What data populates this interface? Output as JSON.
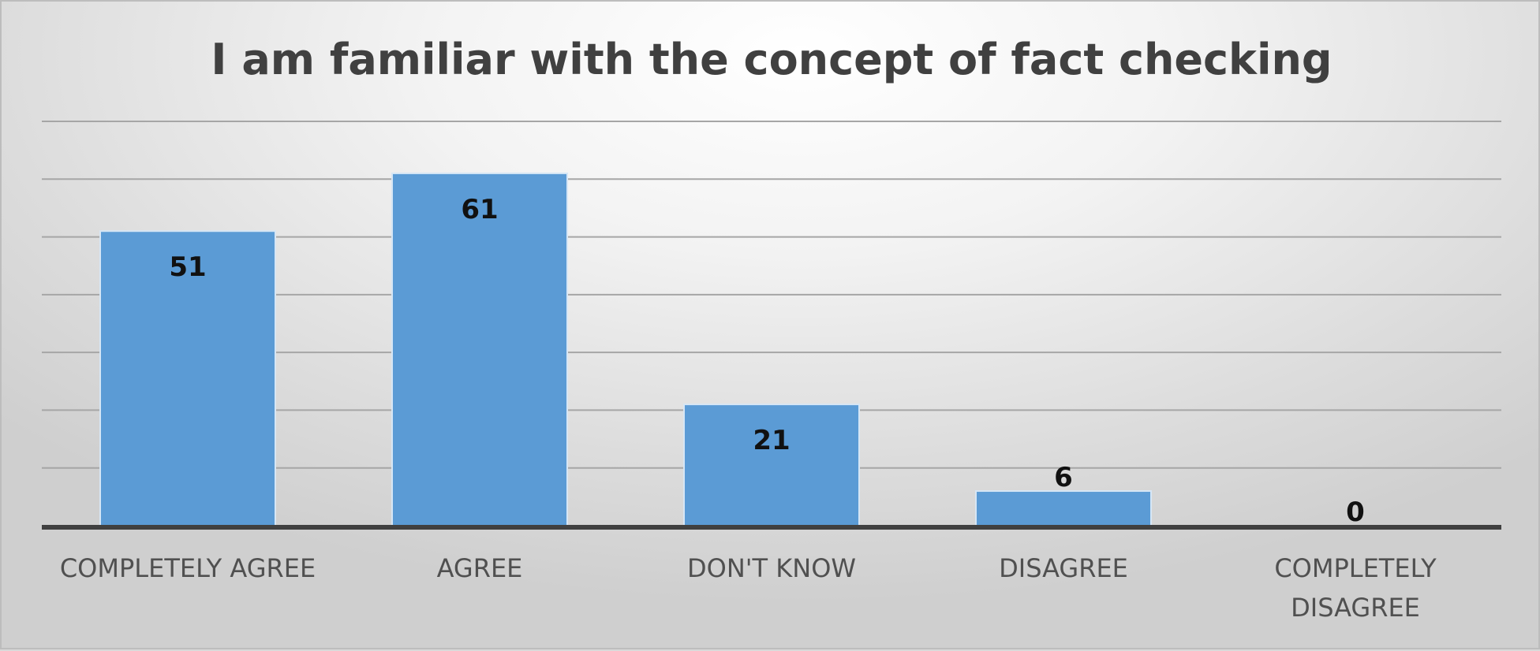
{
  "chart_data": {
    "type": "bar",
    "title": "I am familiar with the concept of fact checking",
    "categories": [
      "COMPLETELY AGREE",
      "AGREE",
      "DON'T KNOW",
      "DISAGREE",
      "COMPLETELY DISAGREE"
    ],
    "category_lines": [
      [
        "COMPLETELY AGREE"
      ],
      [
        "AGREE"
      ],
      [
        "DON'T KNOW"
      ],
      [
        "DISAGREE"
      ],
      [
        "COMPLETELY",
        "DISAGREE"
      ]
    ],
    "values": [
      51,
      61,
      21,
      6,
      0
    ],
    "ylim": [
      0,
      70
    ],
    "grid": true,
    "legend": "none",
    "colors": {
      "bar": "#5b9bd5",
      "bar_stroke": "#d6e6f5",
      "grid": "#a6a6a6",
      "axis": "#404040"
    }
  }
}
